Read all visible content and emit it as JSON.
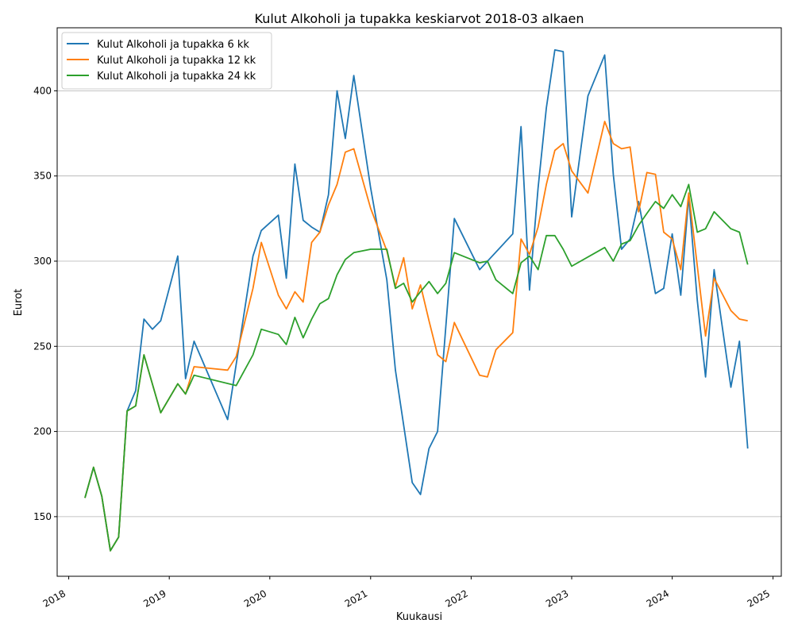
{
  "chart_data": {
    "type": "line",
    "title": "Kulut Alkoholi ja tupakka keskiarvot 2018-03 alkaen",
    "xlabel": "Kuukausi",
    "ylabel": "Eurot",
    "xlim": [
      "2017-11-20",
      "2025-01-31"
    ],
    "ylim": [
      115,
      437
    ],
    "x_ticks": [
      "2018",
      "2019",
      "2020",
      "2021",
      "2022",
      "2023",
      "2024",
      "2025"
    ],
    "y_ticks": [
      150,
      200,
      250,
      300,
      350,
      400
    ],
    "grid": "horizontal",
    "legend_position": "top-left",
    "series": [
      {
        "name": "Kulut Alkoholi ja tupakka 6 kk",
        "color": "#1f77b4",
        "points": [
          [
            "2018-03",
            161
          ],
          [
            "2018-04",
            179
          ],
          [
            "2018-05",
            162
          ],
          [
            "2018-06",
            130
          ],
          [
            "2018-07",
            138
          ],
          [
            "2018-08",
            212
          ],
          [
            "2018-09",
            224
          ],
          [
            "2018-10",
            266
          ],
          [
            "2018-11",
            260
          ],
          [
            "2018-12",
            265
          ],
          [
            "2019-02",
            303
          ],
          [
            "2019-03",
            231
          ],
          [
            "2019-04",
            253
          ],
          [
            "2019-08",
            207
          ],
          [
            "2019-11",
            303
          ],
          [
            "2019-12",
            318
          ],
          [
            "2020-02",
            327
          ],
          [
            "2020-03",
            290
          ],
          [
            "2020-04",
            357
          ],
          [
            "2020-05",
            324
          ],
          [
            "2020-06",
            320
          ],
          [
            "2020-07",
            317
          ],
          [
            "2020-08",
            339
          ],
          [
            "2020-09",
            400
          ],
          [
            "2020-10",
            372
          ],
          [
            "2020-11",
            409
          ],
          [
            "2021-01",
            343
          ],
          [
            "2021-03",
            289
          ],
          [
            "2021-04",
            236
          ],
          [
            "2021-06",
            170
          ],
          [
            "2021-07",
            163
          ],
          [
            "2021-08",
            190
          ],
          [
            "2021-09",
            200
          ],
          [
            "2021-11",
            325
          ],
          [
            "2022-02",
            295
          ],
          [
            "2022-06",
            316
          ],
          [
            "2022-07",
            379
          ],
          [
            "2022-08",
            283
          ],
          [
            "2022-09",
            343
          ],
          [
            "2022-10",
            390
          ],
          [
            "2022-11",
            424
          ],
          [
            "2022-12",
            423
          ],
          [
            "2023-01",
            326
          ],
          [
            "2023-03",
            397
          ],
          [
            "2023-05",
            421
          ],
          [
            "2023-06",
            351
          ],
          [
            "2023-07",
            307
          ],
          [
            "2023-08",
            313
          ],
          [
            "2023-09",
            335
          ],
          [
            "2023-11",
            281
          ],
          [
            "2023-12",
            284
          ],
          [
            "2024-01",
            316
          ],
          [
            "2024-02",
            280
          ],
          [
            "2024-03",
            338
          ],
          [
            "2024-04",
            277
          ],
          [
            "2024-05",
            232
          ],
          [
            "2024-06",
            295
          ],
          [
            "2024-08",
            226
          ],
          [
            "2024-09",
            253
          ],
          [
            "2024-10",
            190
          ]
        ]
      },
      {
        "name": "Kulut Alkoholi ja tupakka 12 kk",
        "color": "#ff7f0e",
        "points": [
          [
            "2018-03",
            161
          ],
          [
            "2018-04",
            179
          ],
          [
            "2018-05",
            162
          ],
          [
            "2018-06",
            130
          ],
          [
            "2018-07",
            138
          ],
          [
            "2018-08",
            212
          ],
          [
            "2018-09",
            215
          ],
          [
            "2018-10",
            245
          ],
          [
            "2018-12",
            211
          ],
          [
            "2019-02",
            228
          ],
          [
            "2019-03",
            222
          ],
          [
            "2019-04",
            238
          ],
          [
            "2019-08",
            236
          ],
          [
            "2019-09",
            244
          ],
          [
            "2019-11",
            284
          ],
          [
            "2019-12",
            311
          ],
          [
            "2020-02",
            280
          ],
          [
            "2020-03",
            272
          ],
          [
            "2020-04",
            282
          ],
          [
            "2020-05",
            276
          ],
          [
            "2020-06",
            311
          ],
          [
            "2020-07",
            317
          ],
          [
            "2020-08",
            333
          ],
          [
            "2020-09",
            345
          ],
          [
            "2020-10",
            364
          ],
          [
            "2020-11",
            366
          ],
          [
            "2021-01",
            331
          ],
          [
            "2021-03",
            306
          ],
          [
            "2021-04",
            285
          ],
          [
            "2021-05",
            302
          ],
          [
            "2021-06",
            272
          ],
          [
            "2021-07",
            286
          ],
          [
            "2021-08",
            265
          ],
          [
            "2021-09",
            245
          ],
          [
            "2021-10",
            241
          ],
          [
            "2021-11",
            264
          ],
          [
            "2022-02",
            233
          ],
          [
            "2022-03",
            232
          ],
          [
            "2022-04",
            248
          ],
          [
            "2022-06",
            258
          ],
          [
            "2022-07",
            313
          ],
          [
            "2022-08",
            304
          ],
          [
            "2022-09",
            320
          ],
          [
            "2022-10",
            345
          ],
          [
            "2022-11",
            365
          ],
          [
            "2022-12",
            369
          ],
          [
            "2023-01",
            353
          ],
          [
            "2023-03",
            340
          ],
          [
            "2023-05",
            382
          ],
          [
            "2023-06",
            369
          ],
          [
            "2023-07",
            366
          ],
          [
            "2023-08",
            367
          ],
          [
            "2023-09",
            329
          ],
          [
            "2023-10",
            352
          ],
          [
            "2023-11",
            351
          ],
          [
            "2023-12",
            317
          ],
          [
            "2024-01",
            313
          ],
          [
            "2024-02",
            295
          ],
          [
            "2024-03",
            340
          ],
          [
            "2024-05",
            256
          ],
          [
            "2024-06",
            290
          ],
          [
            "2024-08",
            271
          ],
          [
            "2024-09",
            266
          ],
          [
            "2024-10",
            265
          ]
        ]
      },
      {
        "name": "Kulut Alkoholi ja tupakka 24 kk",
        "color": "#2ca02c",
        "points": [
          [
            "2018-03",
            161
          ],
          [
            "2018-04",
            179
          ],
          [
            "2018-05",
            162
          ],
          [
            "2018-06",
            130
          ],
          [
            "2018-07",
            138
          ],
          [
            "2018-08",
            212
          ],
          [
            "2018-09",
            215
          ],
          [
            "2018-10",
            245
          ],
          [
            "2018-12",
            211
          ],
          [
            "2019-02",
            228
          ],
          [
            "2019-03",
            222
          ],
          [
            "2019-04",
            233
          ],
          [
            "2019-09",
            227
          ],
          [
            "2019-11",
            245
          ],
          [
            "2019-12",
            260
          ],
          [
            "2020-02",
            257
          ],
          [
            "2020-03",
            251
          ],
          [
            "2020-04",
            267
          ],
          [
            "2020-05",
            255
          ],
          [
            "2020-06",
            266
          ],
          [
            "2020-07",
            275
          ],
          [
            "2020-08",
            278
          ],
          [
            "2020-09",
            292
          ],
          [
            "2020-10",
            301
          ],
          [
            "2020-11",
            305
          ],
          [
            "2021-01",
            307
          ],
          [
            "2021-03",
            307
          ],
          [
            "2021-04",
            284
          ],
          [
            "2021-05",
            287
          ],
          [
            "2021-06",
            276
          ],
          [
            "2021-07",
            282
          ],
          [
            "2021-08",
            288
          ],
          [
            "2021-09",
            281
          ],
          [
            "2021-10",
            287
          ],
          [
            "2021-11",
            305
          ],
          [
            "2022-02",
            299
          ],
          [
            "2022-03",
            300
          ],
          [
            "2022-04",
            289
          ],
          [
            "2022-06",
            281
          ],
          [
            "2022-07",
            299
          ],
          [
            "2022-08",
            303
          ],
          [
            "2022-09",
            295
          ],
          [
            "2022-10",
            315
          ],
          [
            "2022-11",
            315
          ],
          [
            "2022-12",
            307
          ],
          [
            "2023-01",
            297
          ],
          [
            "2023-05",
            308
          ],
          [
            "2023-06",
            300
          ],
          [
            "2023-07",
            310
          ],
          [
            "2023-08",
            312
          ],
          [
            "2023-09",
            321
          ],
          [
            "2023-10",
            328
          ],
          [
            "2023-11",
            335
          ],
          [
            "2023-12",
            331
          ],
          [
            "2024-01",
            339
          ],
          [
            "2024-02",
            332
          ],
          [
            "2024-03",
            345
          ],
          [
            "2024-04",
            317
          ],
          [
            "2024-05",
            319
          ],
          [
            "2024-06",
            329
          ],
          [
            "2024-08",
            319
          ],
          [
            "2024-09",
            317
          ],
          [
            "2024-10",
            298
          ]
        ]
      }
    ]
  }
}
